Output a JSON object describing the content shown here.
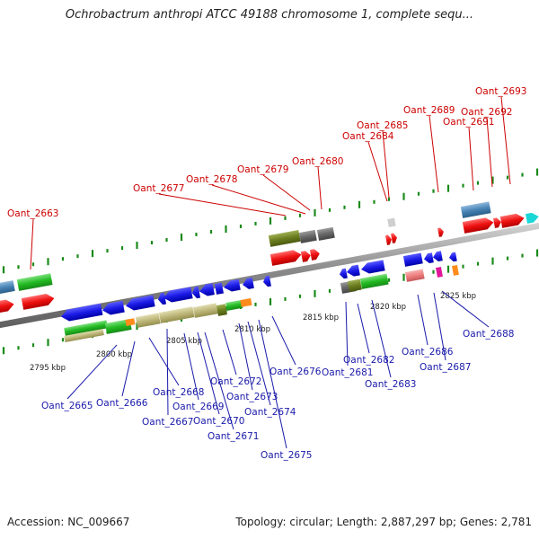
{
  "title": "Ochrobactrum anthropi ATCC 49188 chromosome 1, complete sequ...",
  "footer": {
    "accession": "Accession: NC_009667",
    "summary": "Topology: circular; Length: 2,887,297 bp; Genes: 2,781"
  },
  "scale_labels": [
    "2795 kbp",
    "2800 kbp",
    "2805 kbp",
    "2810 kbp",
    "2815 kbp",
    "2820 kbp",
    "2825 kbp"
  ],
  "genes_top": [
    "Oant_2663",
    "Oant_2677",
    "Oant_2678",
    "Oant_2679",
    "Oant_2680",
    "Oant_2684",
    "Oant_2685",
    "Oant_2689",
    "Oant_2691",
    "Oant_2692",
    "Oant_2693"
  ],
  "genes_bottom": [
    "Oant_2665",
    "Oant_2666",
    "Oant_2667",
    "Oant_2668",
    "Oant_2669",
    "Oant_2670",
    "Oant_2671",
    "Oant_2672",
    "Oant_2673",
    "Oant_2674",
    "Oant_2675",
    "Oant_2676",
    "Oant_2681",
    "Oant_2682",
    "Oant_2683",
    "Oant_2686",
    "Oant_2687",
    "Oant_2688"
  ],
  "colors": {
    "top_label": "#cc0000",
    "bottom_label": "#1a1aaa",
    "forward_gene": "#ee1111",
    "reverse_gene": "#1a1ae6",
    "backbone": "#8c8c8c"
  }
}
